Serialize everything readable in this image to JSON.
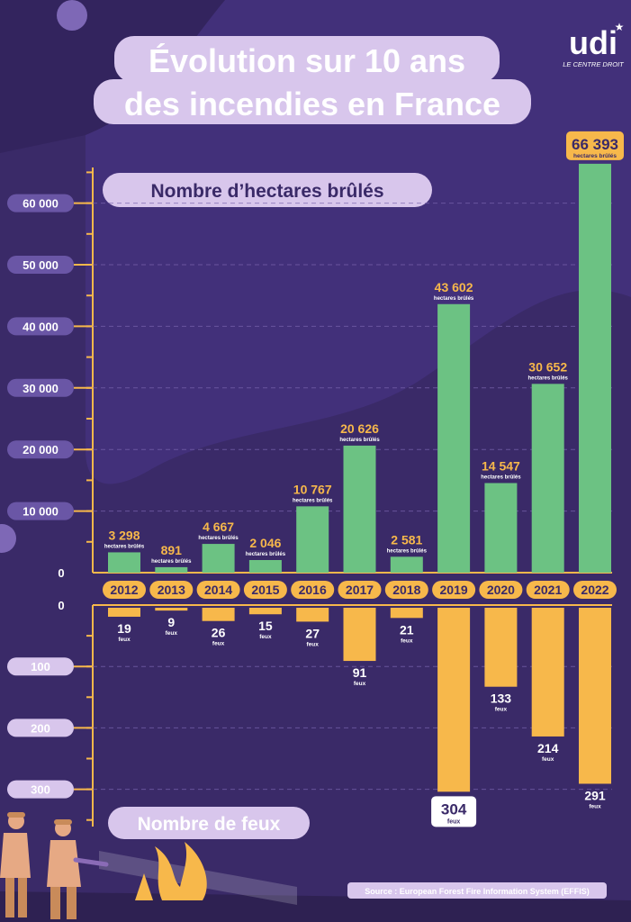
{
  "title": {
    "line1": "Évolution sur 10 ans",
    "line2": "des incendies en France"
  },
  "logo": {
    "wordmark": "udi",
    "tagline": "LE CENTRE DROIT"
  },
  "source": "Source : European Forest Fire Information System (EFFIS)",
  "colors": {
    "background": "#3a2a68",
    "accent_purple": "#d8c6ec",
    "green": "#6cc283",
    "orange": "#f7b84b",
    "dark_text": "#3a2a68"
  },
  "chart_data": [
    {
      "type": "bar",
      "title": "Nombre d’hectares brûlés",
      "categories": [
        "2012",
        "2013",
        "2014",
        "2015",
        "2016",
        "2017",
        "2018",
        "2019",
        "2020",
        "2021",
        "2022"
      ],
      "values": [
        3298,
        891,
        4667,
        2046,
        10767,
        20626,
        2581,
        43602,
        14547,
        30652,
        66393
      ],
      "value_labels": [
        "3 298",
        "891",
        "4 667",
        "2 046",
        "10 767",
        "20 626",
        "2 581",
        "43 602",
        "14 547",
        "30 652",
        "66 393"
      ],
      "unit_label": "hectares brûlés",
      "ylim": [
        0,
        70000
      ],
      "yticks": [
        0,
        10000,
        20000,
        30000,
        40000,
        50000,
        60000
      ],
      "ytick_labels": [
        "0",
        "10 000",
        "20 000",
        "30 000",
        "40 000",
        "50 000",
        "60 000"
      ],
      "color": "#6cc283"
    },
    {
      "type": "bar",
      "title": "Nombre de feux",
      "categories": [
        "2012",
        "2013",
        "2014",
        "2015",
        "2016",
        "2017",
        "2018",
        "2019",
        "2020",
        "2021",
        "2022"
      ],
      "values": [
        19,
        9,
        26,
        15,
        27,
        91,
        21,
        304,
        133,
        214,
        291
      ],
      "value_labels": [
        "19",
        "9",
        "26",
        "15",
        "27",
        "91",
        "21",
        "304",
        "133",
        "214",
        "291"
      ],
      "unit_label": "feux",
      "ylim": [
        0,
        350
      ],
      "yticks": [
        0,
        100,
        200,
        300
      ],
      "ytick_labels": [
        "0",
        "100",
        "200",
        "300"
      ],
      "direction": "down",
      "color": "#f7b84b"
    }
  ]
}
